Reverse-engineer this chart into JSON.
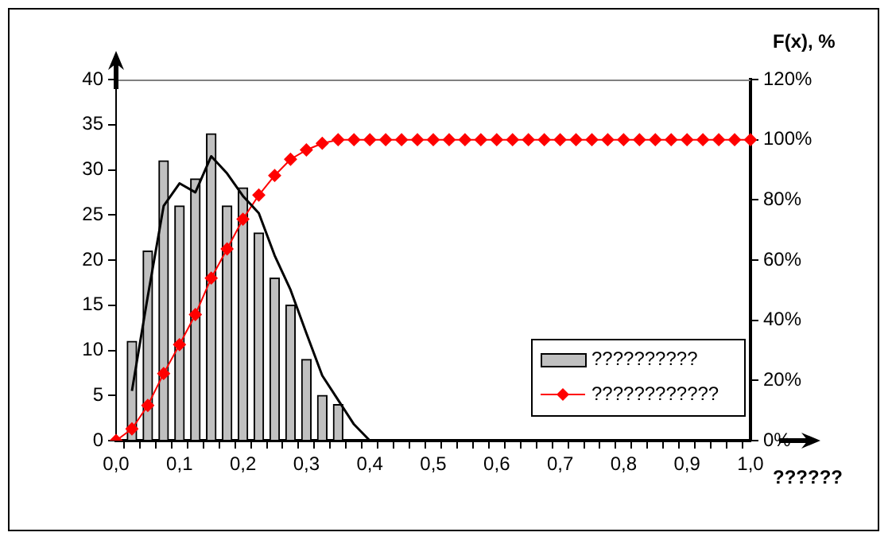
{
  "chart_data": {
    "type": "bar",
    "xlabel": "??????",
    "y2label": "F(x), %",
    "categories": [
      "0,0",
      null,
      null,
      null,
      "0,1",
      null,
      null,
      null,
      "0,2",
      null,
      null,
      null,
      "0,3",
      null,
      null,
      null,
      "0,4",
      null,
      null,
      null,
      "0,5",
      null,
      null,
      null,
      "0,6",
      null,
      null,
      null,
      "0,7",
      null,
      null,
      null,
      "0,8",
      null,
      null,
      null,
      "0,9",
      null,
      null,
      null,
      "1,0"
    ],
    "ylim": [
      0,
      40
    ],
    "yticks": [
      0,
      5,
      10,
      15,
      20,
      25,
      30,
      35,
      40
    ],
    "y2lim": [
      0,
      120
    ],
    "y2ticks": [
      {
        "value": 0,
        "label": "0%"
      },
      {
        "value": 20,
        "label": "20%"
      },
      {
        "value": 40,
        "label": "40%"
      },
      {
        "value": 60,
        "label": "60%"
      },
      {
        "value": 80,
        "label": "80%"
      },
      {
        "value": 100,
        "label": "100%"
      },
      {
        "value": 120,
        "label": "120%"
      }
    ],
    "grid": false,
    "legend": "bottom right",
    "series": [
      {
        "name": "??????????",
        "color": "#c0c0c0",
        "values": [
          null,
          11,
          21,
          31,
          26,
          29,
          34,
          26,
          28,
          23,
          18,
          15,
          9,
          5,
          4,
          null,
          null,
          null,
          null,
          null,
          null,
          null,
          null,
          null,
          null,
          null,
          null,
          null,
          null,
          null,
          null,
          null,
          null,
          null,
          null,
          null,
          null,
          null,
          null,
          null,
          null
        ]
      },
      {
        "type": "line",
        "color": "#000000",
        "marker": "none",
        "values": [
          null,
          5.5,
          16,
          26,
          28.5,
          27.5,
          31.5,
          29.6,
          27.1,
          25.2,
          20.5,
          16.7,
          11.9,
          7.2,
          4.5,
          1.8,
          0,
          0,
          null,
          null,
          null,
          null,
          null,
          null,
          null,
          null,
          null,
          null,
          null,
          null,
          null,
          null,
          null,
          null,
          null,
          null,
          null,
          null,
          null,
          null,
          null
        ]
      },
      {
        "type": "line",
        "name": "????????????",
        "color": "#ff0000",
        "axis": "y2",
        "marker": "diamond",
        "values": [
          0,
          3.9,
          11.7,
          22.3,
          31.9,
          41.9,
          54,
          63.7,
          73.6,
          81.6,
          88.1,
          93.5,
          96.6,
          98.8,
          100,
          100,
          100,
          100,
          100,
          100,
          100,
          100,
          100,
          100,
          100,
          100,
          100,
          100,
          100,
          100,
          100,
          100,
          100,
          100,
          100,
          100,
          100,
          100,
          100,
          100,
          100
        ]
      }
    ]
  }
}
